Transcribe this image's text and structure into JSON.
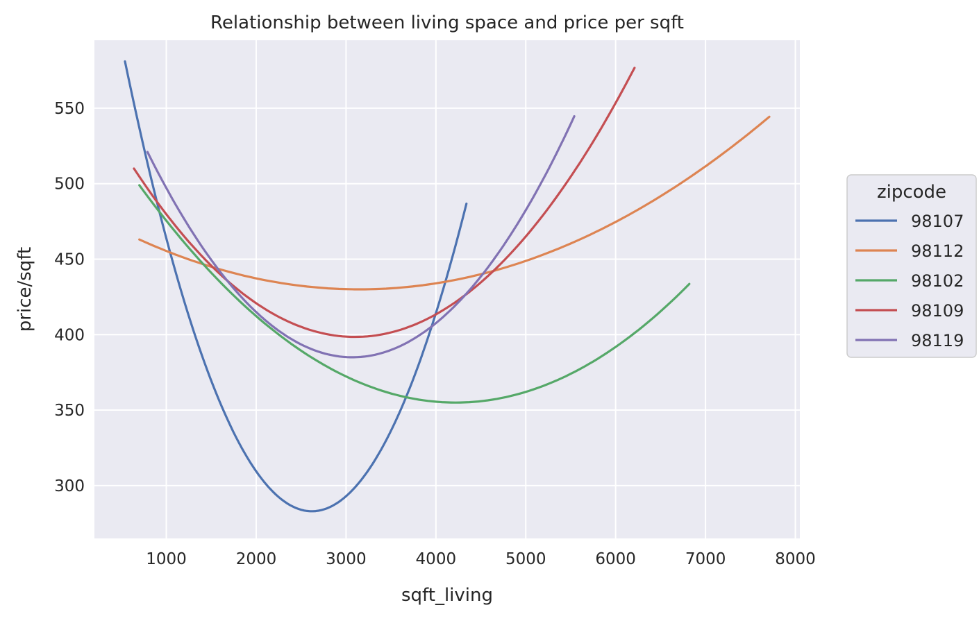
{
  "chart_data": {
    "type": "line",
    "title": "Relationship between living space and price per sqft",
    "xlabel": "sqft_living",
    "ylabel": "price/sqft",
    "xlim": [
      200,
      8050
    ],
    "ylim": [
      265,
      595
    ],
    "xticks": [
      1000,
      2000,
      3000,
      4000,
      5000,
      6000,
      7000,
      8000
    ],
    "yticks": [
      300,
      350,
      400,
      450,
      500,
      550
    ],
    "grid": true,
    "legend": {
      "title": "zipcode",
      "placement": "right"
    },
    "series": [
      {
        "name": "98107",
        "color": "#4c72b0",
        "x_range": [
          540,
          4340
        ],
        "vertex": [
          2620,
          283
        ],
        "start_y": 581
      },
      {
        "name": "98112",
        "color": "#dd8452",
        "x_range": [
          700,
          7710
        ],
        "vertex": [
          3150,
          430
        ],
        "start_y": 463
      },
      {
        "name": "98102",
        "color": "#55a868",
        "x_range": [
          700,
          6820
        ],
        "vertex": [
          4220,
          355
        ],
        "start_y": 499
      },
      {
        "name": "98109",
        "color": "#c44e52",
        "x_range": [
          640,
          6210
        ],
        "vertex": [
          3100,
          398.5
        ],
        "start_y": 510
      },
      {
        "name": "98119",
        "color": "#8172b3",
        "x_range": [
          790,
          5540
        ],
        "vertex": [
          3070,
          385
        ],
        "start_y": 521
      }
    ]
  }
}
